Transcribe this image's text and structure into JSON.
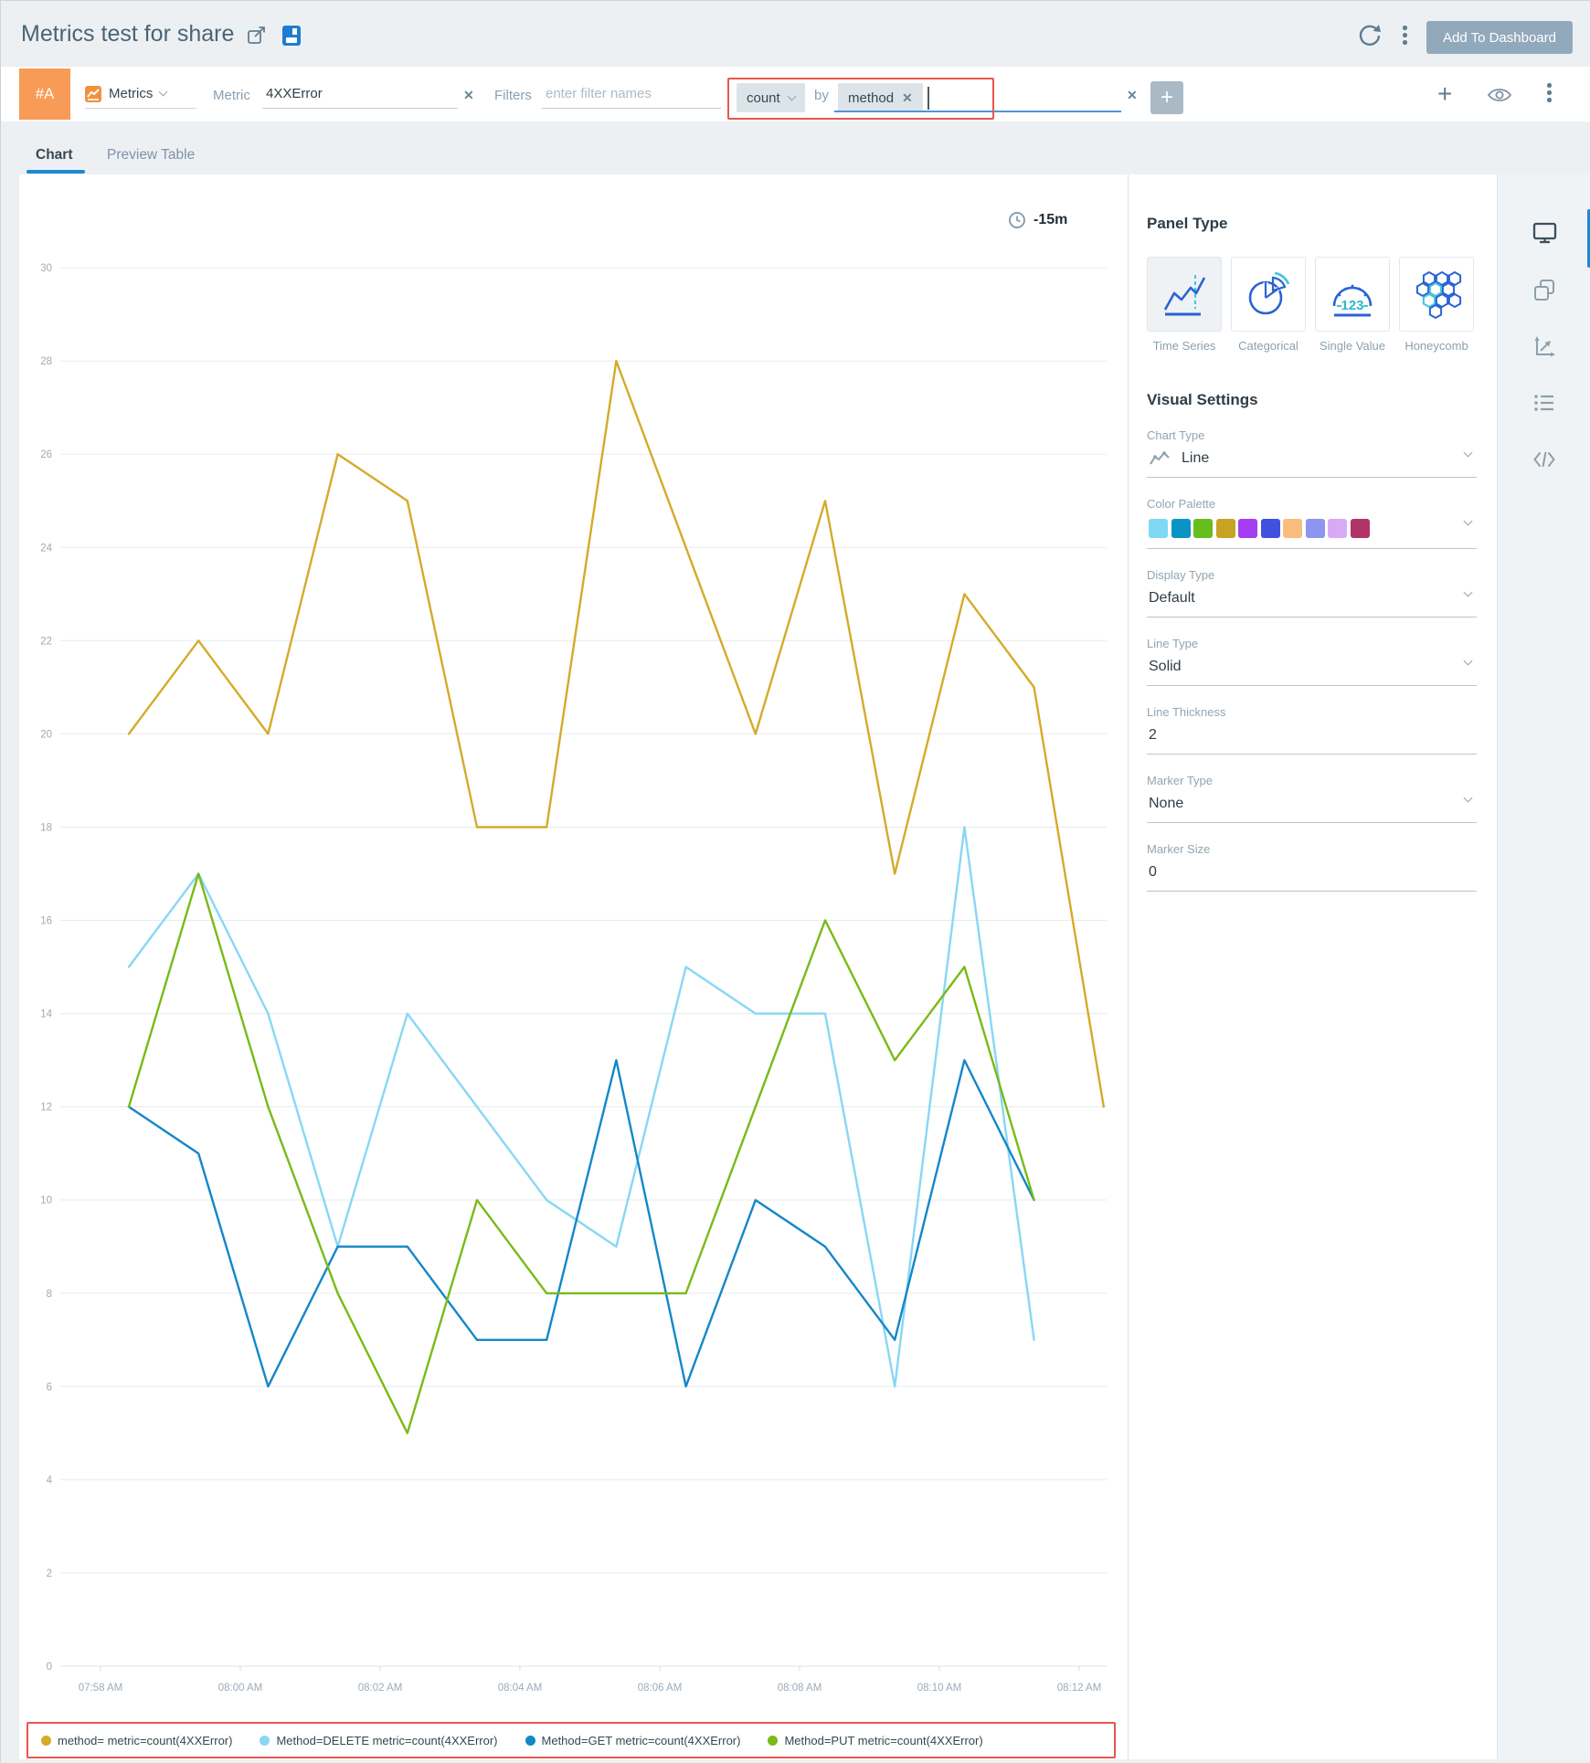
{
  "header": {
    "title": "Metrics test for share",
    "add_to_dashboard_label": "Add To Dashboard"
  },
  "query": {
    "row_badge": "#A",
    "source_label": "Metrics",
    "metric_label": "Metric",
    "metric_value": "4XXError",
    "filters_label": "Filters",
    "filters_placeholder": "enter filter names",
    "aggregation": {
      "operator": "count",
      "by_label": "by",
      "group_by": "method"
    }
  },
  "tabs": [
    {
      "label": "Chart",
      "active": true
    },
    {
      "label": "Preview Table",
      "active": false
    }
  ],
  "chart_data": {
    "type": "line",
    "time_range_badge": "-15m",
    "grid": "horizontal",
    "legend_position": "bottom",
    "ylim": [
      0,
      30
    ],
    "y_ticks": [
      0,
      2,
      4,
      6,
      8,
      10,
      12,
      14,
      16,
      18,
      20,
      22,
      24,
      26,
      28,
      30
    ],
    "x_tick_labels": [
      "07:58 AM",
      "08:00 AM",
      "08:02 AM",
      "08:04 AM",
      "08:06 AM",
      "08:08 AM",
      "08:10 AM",
      "08:12 AM"
    ],
    "x_interval_minutes": 1,
    "series": [
      {
        "name": "method= metric=count(4XXError)",
        "color": "#d4ab2a",
        "values": [
          20,
          22,
          20,
          26,
          25,
          18,
          18,
          28,
          24,
          20,
          25,
          17,
          23,
          21,
          12
        ]
      },
      {
        "name": "Method=DELETE metric=count(4XXError)",
        "color": "#88d7f5",
        "values": [
          15,
          17,
          14,
          9,
          14,
          12,
          10,
          9,
          15,
          14,
          14,
          6,
          18,
          7
        ]
      },
      {
        "name": "Method=GET metric=count(4XXError)",
        "color": "#1487c8",
        "values": [
          12,
          11,
          6,
          9,
          9,
          7,
          7,
          13,
          6,
          10,
          9,
          7,
          13,
          10
        ]
      },
      {
        "name": "Method=PUT metric=count(4XXError)",
        "color": "#79ba17",
        "values": [
          12,
          17,
          12,
          8,
          5,
          10,
          8,
          8,
          8,
          12,
          16,
          13,
          15,
          10
        ]
      }
    ]
  },
  "panel": {
    "title": "Panel Type",
    "types": [
      {
        "label": "Time Series",
        "icon": "time-series-icon",
        "selected": true
      },
      {
        "label": "Categorical",
        "icon": "categorical-icon",
        "selected": false
      },
      {
        "label": "Single Value",
        "icon": "single-value-icon",
        "selected": false
      },
      {
        "label": "Honeycomb",
        "icon": "honeycomb-icon",
        "selected": false
      }
    ],
    "visual_settings": {
      "title": "Visual Settings",
      "fields": [
        {
          "label": "Chart Type",
          "value": "Line",
          "icon": "line-chart-icon",
          "chevron": true
        },
        {
          "label": "Color Palette",
          "type": "palette",
          "chevron": true,
          "colors": [
            "#7fd9f2",
            "#0a94c6",
            "#66bd1e",
            "#c7a323",
            "#a43ef0",
            "#4150dd",
            "#f9bd7e",
            "#8c95ef",
            "#d8aaf5",
            "#b03468"
          ]
        },
        {
          "label": "Display Type",
          "value": "Default",
          "chevron": true
        },
        {
          "label": "Line Type",
          "value": "Solid",
          "chevron": true
        },
        {
          "label": "Line Thickness",
          "value": "2",
          "chevron": false
        },
        {
          "label": "Marker Type",
          "value": "None",
          "chevron": true
        },
        {
          "label": "Marker Size",
          "value": "0",
          "chevron": false
        }
      ]
    }
  },
  "rail": {
    "icons": [
      "monitor-icon",
      "copy-icon",
      "axes-icon",
      "list-icon",
      "code-icon"
    ]
  }
}
